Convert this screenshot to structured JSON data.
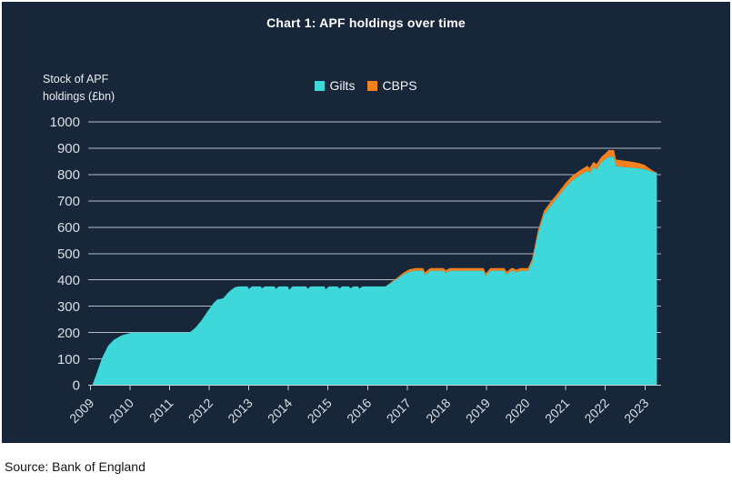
{
  "title": "Chart 1: APF holdings over time",
  "y_axis_title": "Stock of APF\nholdings (£bn)",
  "source": "Source: Bank of England",
  "colors": {
    "panel_background": "#172639",
    "gridline": "#C6CDD5",
    "axis_text": "#D9DFE6",
    "gilts": "#3ED8DB",
    "cbps": "#F5801E"
  },
  "chart_data": {
    "type": "area",
    "stacked": true,
    "title": "Chart 1: APF holdings over time",
    "ylabel": "Stock of APF holdings (£bn)",
    "ylim": [
      0,
      1000
    ],
    "ytick_step": 100,
    "x_label_years": [
      2009,
      2010,
      2011,
      2012,
      2013,
      2014,
      2015,
      2016,
      2017,
      2018,
      2019,
      2020,
      2021,
      2022,
      2023
    ],
    "grid": true,
    "legend_position": "top-center",
    "series": [
      {
        "name": "Gilts",
        "color": "#3ED8DB"
      },
      {
        "name": "CBPS",
        "color": "#F5801E"
      }
    ],
    "points_format": "[year, gilts_stock_bn, cbps_stock_bn]",
    "points": [
      [
        2009.05,
        0,
        0
      ],
      [
        2009.15,
        40,
        0
      ],
      [
        2009.3,
        105,
        0
      ],
      [
        2009.45,
        150,
        0
      ],
      [
        2009.6,
        173,
        0
      ],
      [
        2009.8,
        190,
        0
      ],
      [
        2010.0,
        198,
        0
      ],
      [
        2010.1,
        200,
        0
      ],
      [
        2011.5,
        200,
        0
      ],
      [
        2011.65,
        218,
        0
      ],
      [
        2011.8,
        245,
        0
      ],
      [
        2011.95,
        278,
        0
      ],
      [
        2012.1,
        310,
        0
      ],
      [
        2012.2,
        325,
        0
      ],
      [
        2012.35,
        330,
        0
      ],
      [
        2012.5,
        355,
        0
      ],
      [
        2012.65,
        372,
        0
      ],
      [
        2012.75,
        375,
        0
      ],
      [
        2012.97,
        375,
        0
      ],
      [
        2013.0,
        365,
        0
      ],
      [
        2013.08,
        375,
        0
      ],
      [
        2013.3,
        375,
        0
      ],
      [
        2013.33,
        368,
        0
      ],
      [
        2013.41,
        375,
        0
      ],
      [
        2013.65,
        375,
        0
      ],
      [
        2013.68,
        366,
        0
      ],
      [
        2013.76,
        375,
        0
      ],
      [
        2013.99,
        375,
        0
      ],
      [
        2014.02,
        362,
        0
      ],
      [
        2014.1,
        375,
        0
      ],
      [
        2014.45,
        375,
        0
      ],
      [
        2014.48,
        366,
        0
      ],
      [
        2014.56,
        375,
        0
      ],
      [
        2014.91,
        375,
        0
      ],
      [
        2014.94,
        364,
        0
      ],
      [
        2015.02,
        375,
        0
      ],
      [
        2015.25,
        375,
        0
      ],
      [
        2015.28,
        367,
        0
      ],
      [
        2015.36,
        375,
        0
      ],
      [
        2015.53,
        375,
        0
      ],
      [
        2015.56,
        368,
        0
      ],
      [
        2015.64,
        375,
        0
      ],
      [
        2015.76,
        375,
        0
      ],
      [
        2015.79,
        366,
        0
      ],
      [
        2015.87,
        375,
        0
      ],
      [
        2016.45,
        375,
        0
      ],
      [
        2016.6,
        390,
        2
      ],
      [
        2016.75,
        404,
        5
      ],
      [
        2016.9,
        420,
        7
      ],
      [
        2017.05,
        431,
        9
      ],
      [
        2017.2,
        435,
        10
      ],
      [
        2017.4,
        435,
        10
      ],
      [
        2017.45,
        419,
        10
      ],
      [
        2017.58,
        435,
        10
      ],
      [
        2017.92,
        435,
        10
      ],
      [
        2017.97,
        427,
        10
      ],
      [
        2018.08,
        435,
        10
      ],
      [
        2018.93,
        435,
        10
      ],
      [
        2018.98,
        415,
        10
      ],
      [
        2019.1,
        435,
        10
      ],
      [
        2019.45,
        435,
        10
      ],
      [
        2019.51,
        421,
        10
      ],
      [
        2019.63,
        435,
        10
      ],
      [
        2019.69,
        435,
        10
      ],
      [
        2019.74,
        428,
        10
      ],
      [
        2019.85,
        435,
        10
      ],
      [
        2020.05,
        435,
        10
      ],
      [
        2020.15,
        468,
        11
      ],
      [
        2020.3,
        575,
        13
      ],
      [
        2020.45,
        648,
        14
      ],
      [
        2020.6,
        678,
        15
      ],
      [
        2020.8,
        714,
        16
      ],
      [
        2021.0,
        752,
        17
      ],
      [
        2021.15,
        775,
        18
      ],
      [
        2021.3,
        792,
        18
      ],
      [
        2021.45,
        806,
        19
      ],
      [
        2021.55,
        815,
        19
      ],
      [
        2021.6,
        806,
        19
      ],
      [
        2021.7,
        828,
        20
      ],
      [
        2021.78,
        820,
        20
      ],
      [
        2021.9,
        848,
        20
      ],
      [
        2022.0,
        858,
        22
      ],
      [
        2022.08,
        868,
        25
      ],
      [
        2022.22,
        868,
        25
      ],
      [
        2022.27,
        832,
        25
      ],
      [
        2022.5,
        828,
        24
      ],
      [
        2022.7,
        826,
        22
      ],
      [
        2022.85,
        824,
        20
      ],
      [
        2023.0,
        820,
        16
      ],
      [
        2023.1,
        815,
        10
      ],
      [
        2023.2,
        810,
        5
      ],
      [
        2023.3,
        806,
        1
      ]
    ]
  }
}
